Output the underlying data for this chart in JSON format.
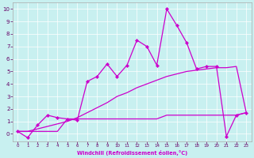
{
  "xlabel": "Windchill (Refroidissement éolien,°C)",
  "background_color": "#c8f0f0",
  "line_color": "#cc00cc",
  "xlim": [
    -0.5,
    23.5
  ],
  "ylim": [
    -0.6,
    10.5
  ],
  "xticks": [
    0,
    1,
    2,
    3,
    4,
    5,
    6,
    7,
    8,
    9,
    10,
    11,
    12,
    13,
    14,
    15,
    16,
    17,
    18,
    19,
    20,
    21,
    22,
    23
  ],
  "yticks": [
    0,
    1,
    2,
    3,
    4,
    5,
    6,
    7,
    8,
    9,
    10
  ],
  "line1_x": [
    0,
    1,
    2,
    3,
    4,
    5,
    6,
    7,
    8,
    9,
    10,
    11,
    12,
    13,
    14,
    15,
    16,
    17,
    18,
    19,
    20,
    21,
    22,
    23
  ],
  "line1_y": [
    0.2,
    -0.3,
    0.7,
    1.5,
    1.3,
    1.2,
    1.1,
    4.2,
    4.6,
    5.6,
    4.6,
    5.5,
    7.5,
    7.0,
    5.5,
    10.0,
    8.7,
    7.3,
    5.2,
    5.4,
    5.4,
    -0.2,
    1.5,
    1.7
  ],
  "line2_x": [
    0,
    1,
    2,
    3,
    4,
    5,
    6,
    7,
    8,
    9,
    10,
    11,
    12,
    13,
    14,
    15,
    16,
    17,
    18,
    19,
    20,
    21,
    22,
    23
  ],
  "line2_y": [
    0.2,
    0.2,
    0.4,
    0.6,
    0.8,
    1.0,
    1.3,
    1.7,
    2.1,
    2.5,
    3.0,
    3.3,
    3.7,
    4.0,
    4.3,
    4.6,
    4.8,
    5.0,
    5.1,
    5.2,
    5.3,
    5.3,
    5.4,
    1.7
  ],
  "line3_x": [
    0,
    1,
    2,
    3,
    4,
    5,
    6,
    7,
    8,
    9,
    10,
    11,
    12,
    13,
    14,
    15,
    16,
    17,
    18,
    19,
    20,
    21,
    22,
    23
  ],
  "line3_y": [
    0.2,
    0.2,
    0.2,
    0.2,
    0.2,
    1.2,
    1.2,
    1.2,
    1.2,
    1.2,
    1.2,
    1.2,
    1.2,
    1.2,
    1.2,
    1.5,
    1.5,
    1.5,
    1.5,
    1.5,
    1.5,
    1.5,
    1.5,
    1.7
  ]
}
